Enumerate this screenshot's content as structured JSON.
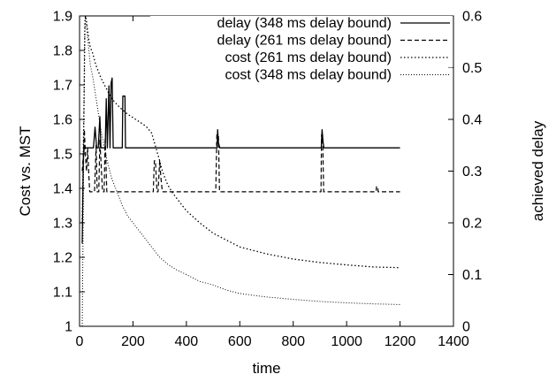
{
  "chart_data": {
    "type": "line",
    "title": "",
    "xlabel": "time",
    "ylabel": "Cost vs. MST",
    "y2label": "achieved delay",
    "xlim": [
      0,
      1400
    ],
    "ylim": [
      1,
      1.9
    ],
    "y2lim": [
      0,
      0.6
    ],
    "xticks": [
      0,
      200,
      400,
      600,
      800,
      1000,
      1200,
      1400
    ],
    "yticks": [
      1,
      1.1,
      1.2,
      1.3,
      1.4,
      1.5,
      1.6,
      1.7,
      1.8,
      1.9
    ],
    "y2ticks": [
      0,
      0.1,
      0.2,
      0.3,
      0.4,
      0.5,
      0.6
    ],
    "grid": false,
    "legend_position": "top-right",
    "series": [
      {
        "name": "delay (348 ms delay bound)",
        "axis": "right",
        "style": "solid",
        "x": [
          10,
          14,
          18,
          22,
          26,
          30,
          40,
          52,
          58,
          64,
          70,
          76,
          80,
          88,
          96,
          100,
          104,
          110,
          114,
          118,
          122,
          126,
          130,
          136,
          140,
          160,
          162,
          170,
          172,
          180,
          190,
          250,
          300,
          400,
          500,
          510,
          515,
          517,
          520,
          525,
          530,
          534,
          540,
          600,
          700,
          800,
          900,
          905,
          908,
          912,
          915,
          918,
          922,
          926,
          1000,
          1100,
          1110,
          1112,
          1116,
          1118,
          1120,
          1130,
          1200
        ],
        "y": [
          0.16,
          0.32,
          0.35,
          0.345,
          0.345,
          0.345,
          0.345,
          0.345,
          0.385,
          0.345,
          0.345,
          0.405,
          0.345,
          0.345,
          0.345,
          0.44,
          0.345,
          0.465,
          0.345,
          0.47,
          0.48,
          0.345,
          0.345,
          0.345,
          0.345,
          0.345,
          0.445,
          0.445,
          0.345,
          0.345,
          0.345,
          0.345,
          0.345,
          0.345,
          0.345,
          0.345,
          0.345,
          0.38,
          0.355,
          0.345,
          0.345,
          0.345,
          0.345,
          0.345,
          0.345,
          0.345,
          0.345,
          0.345,
          0.38,
          0.355,
          0.345,
          0.345,
          0.345,
          0.345,
          0.345,
          0.345,
          0.345,
          0.345,
          0.345,
          0.345,
          0.345,
          0.345,
          0.345
        ]
      },
      {
        "name": "delay (261 ms delay bound)",
        "axis": "right",
        "style": "dashed",
        "x": [
          10,
          14,
          18,
          22,
          26,
          30,
          34,
          38,
          46,
          56,
          62,
          66,
          72,
          76,
          86,
          92,
          96,
          102,
          108,
          114,
          120,
          130,
          200,
          270,
          276,
          280,
          284,
          290,
          294,
          300,
          305,
          310,
          400,
          505,
          510,
          514,
          520,
          524,
          530,
          600,
          700,
          800,
          900,
          904,
          906,
          910,
          914,
          918,
          930,
          1000,
          1100,
          1110,
          1112,
          1116,
          1118,
          1120,
          1200
        ],
        "y": [
          0.3,
          0.33,
          0.38,
          0.33,
          0.3,
          0.345,
          0.3,
          0.26,
          0.26,
          0.26,
          0.35,
          0.26,
          0.26,
          0.36,
          0.26,
          0.26,
          0.365,
          0.26,
          0.26,
          0.26,
          0.26,
          0.26,
          0.26,
          0.26,
          0.26,
          0.32,
          0.32,
          0.26,
          0.26,
          0.32,
          0.285,
          0.26,
          0.26,
          0.26,
          0.26,
          0.37,
          0.37,
          0.26,
          0.26,
          0.26,
          0.26,
          0.26,
          0.26,
          0.26,
          0.37,
          0.37,
          0.26,
          0.26,
          0.26,
          0.26,
          0.26,
          0.26,
          0.27,
          0.27,
          0.26,
          0.26,
          0.26
        ]
      },
      {
        "name": "cost (261 ms delay bound)",
        "axis": "left",
        "style": "dotted",
        "x": [
          10,
          14,
          18,
          20,
          22,
          25,
          30,
          35,
          40,
          50,
          60,
          70,
          80,
          100,
          120,
          150,
          180,
          200,
          220,
          240,
          255,
          270,
          285,
          300,
          310,
          320,
          330,
          350,
          375,
          400,
          450,
          500,
          550,
          600,
          700,
          800,
          900,
          1000,
          1100,
          1200
        ],
        "y": [
          1.3,
          1.5,
          1.72,
          1.88,
          1.9,
          1.89,
          1.86,
          1.83,
          1.81,
          1.79,
          1.76,
          1.74,
          1.72,
          1.69,
          1.66,
          1.635,
          1.615,
          1.605,
          1.595,
          1.585,
          1.575,
          1.56,
          1.52,
          1.48,
          1.45,
          1.43,
          1.41,
          1.385,
          1.36,
          1.335,
          1.3,
          1.27,
          1.25,
          1.23,
          1.21,
          1.195,
          1.185,
          1.178,
          1.172,
          1.17
        ]
      },
      {
        "name": "cost (348 ms delay bound)",
        "axis": "left",
        "style": "fine-dotted",
        "x": [
          10,
          14,
          18,
          20,
          22,
          25,
          30,
          35,
          40,
          50,
          60,
          70,
          80,
          90,
          100,
          110,
          120,
          140,
          160,
          180,
          200,
          220,
          240,
          260,
          280,
          300,
          330,
          360,
          400,
          450,
          500,
          550,
          600,
          700,
          800,
          900,
          1000,
          1100,
          1200
        ],
        "y": [
          1.0,
          1.35,
          1.78,
          1.86,
          1.9,
          1.88,
          1.84,
          1.8,
          1.76,
          1.72,
          1.67,
          1.62,
          1.57,
          1.53,
          1.49,
          1.46,
          1.43,
          1.39,
          1.35,
          1.32,
          1.3,
          1.28,
          1.26,
          1.24,
          1.22,
          1.2,
          1.18,
          1.165,
          1.15,
          1.13,
          1.12,
          1.105,
          1.095,
          1.085,
          1.078,
          1.072,
          1.068,
          1.065,
          1.063
        ]
      }
    ]
  }
}
